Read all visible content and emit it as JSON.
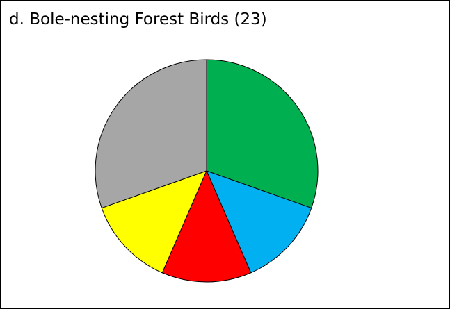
{
  "chart_data": {
    "type": "pie",
    "title": "d. Bole-nesting Forest Birds (23)",
    "start_angle": "12 o'clock",
    "direction": "clockwise",
    "values": [
      7,
      3,
      3,
      3,
      7
    ],
    "colors": [
      "#00b050",
      "#00b0f0",
      "#ff0000",
      "#ffff00",
      "#a6a6a6"
    ]
  }
}
